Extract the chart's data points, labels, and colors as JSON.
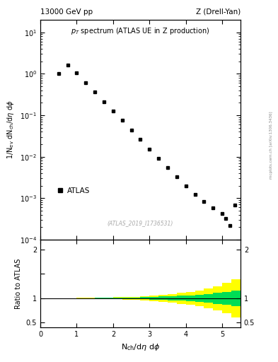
{
  "title_left": "13000 GeV pp",
  "title_right": "Z (Drell-Yan)",
  "plot_title": "p$_T$ spectrum (ATLAS UE in Z production)",
  "watermark": "(ATLAS_2019_I1736531)",
  "ylabel_main": "1/N$_{ev}$ dN$_{ch}$/dη dϕ",
  "ylabel_ratio": "Ratio to ATLAS",
  "xlabel": "N$_{ch}$/dη dϕ",
  "side_text": "mcplots.cern.ch [arXiv:1306.3436]",
  "legend_label": "ATLAS",
  "xlim": [
    0,
    5.5
  ],
  "ylim_main": [
    0.0001,
    20
  ],
  "ylim_ratio": [
    0.4,
    2.2
  ],
  "main_data_x": [
    0.5,
    0.75,
    1.0,
    1.25,
    1.5,
    1.75,
    2.0,
    2.25,
    2.5,
    2.75,
    3.0,
    3.25,
    3.5,
    3.75,
    4.0,
    4.25,
    4.5,
    4.75,
    5.0,
    5.1,
    5.2,
    5.35
  ],
  "main_data_y": [
    1.0,
    1.65,
    1.05,
    0.62,
    0.36,
    0.21,
    0.125,
    0.075,
    0.044,
    0.026,
    0.015,
    0.009,
    0.0055,
    0.0033,
    0.002,
    0.00125,
    0.00085,
    0.00058,
    0.00042,
    0.00032,
    0.00022,
    0.00068
  ],
  "color_data": "#000000",
  "color_green": "#00dd55",
  "color_yellow": "#ffff00",
  "background_color": "#ffffff",
  "marker_size": 3.5,
  "ratio_x": [
    0.5,
    0.75,
    1.0,
    1.25,
    1.5,
    1.75,
    2.0,
    2.25,
    2.5,
    2.75,
    3.0,
    3.25,
    3.5,
    3.75,
    4.0,
    4.25,
    4.5,
    4.75,
    5.0,
    5.25,
    5.5
  ],
  "ratio_green_upper": [
    1.001,
    1.002,
    1.003,
    1.005,
    1.007,
    1.01,
    1.012,
    1.015,
    1.018,
    1.022,
    1.028,
    1.035,
    1.042,
    1.05,
    1.06,
    1.075,
    1.09,
    1.11,
    1.13,
    1.16,
    1.55
  ],
  "ratio_green_lower": [
    0.999,
    0.998,
    0.997,
    0.995,
    0.993,
    0.99,
    0.988,
    0.985,
    0.982,
    0.978,
    0.972,
    0.965,
    0.958,
    0.95,
    0.94,
    0.925,
    0.91,
    0.89,
    0.87,
    0.84,
    0.5
  ],
  "ratio_yellow_upper": [
    1.002,
    1.004,
    1.006,
    1.009,
    1.012,
    1.016,
    1.021,
    1.026,
    1.033,
    1.042,
    1.055,
    1.07,
    1.088,
    1.11,
    1.135,
    1.165,
    1.2,
    1.25,
    1.31,
    1.39,
    2.05
  ],
  "ratio_yellow_lower": [
    0.998,
    0.996,
    0.994,
    0.991,
    0.988,
    0.984,
    0.979,
    0.974,
    0.967,
    0.958,
    0.945,
    0.93,
    0.912,
    0.89,
    0.865,
    0.835,
    0.8,
    0.75,
    0.69,
    0.61,
    0.38
  ]
}
